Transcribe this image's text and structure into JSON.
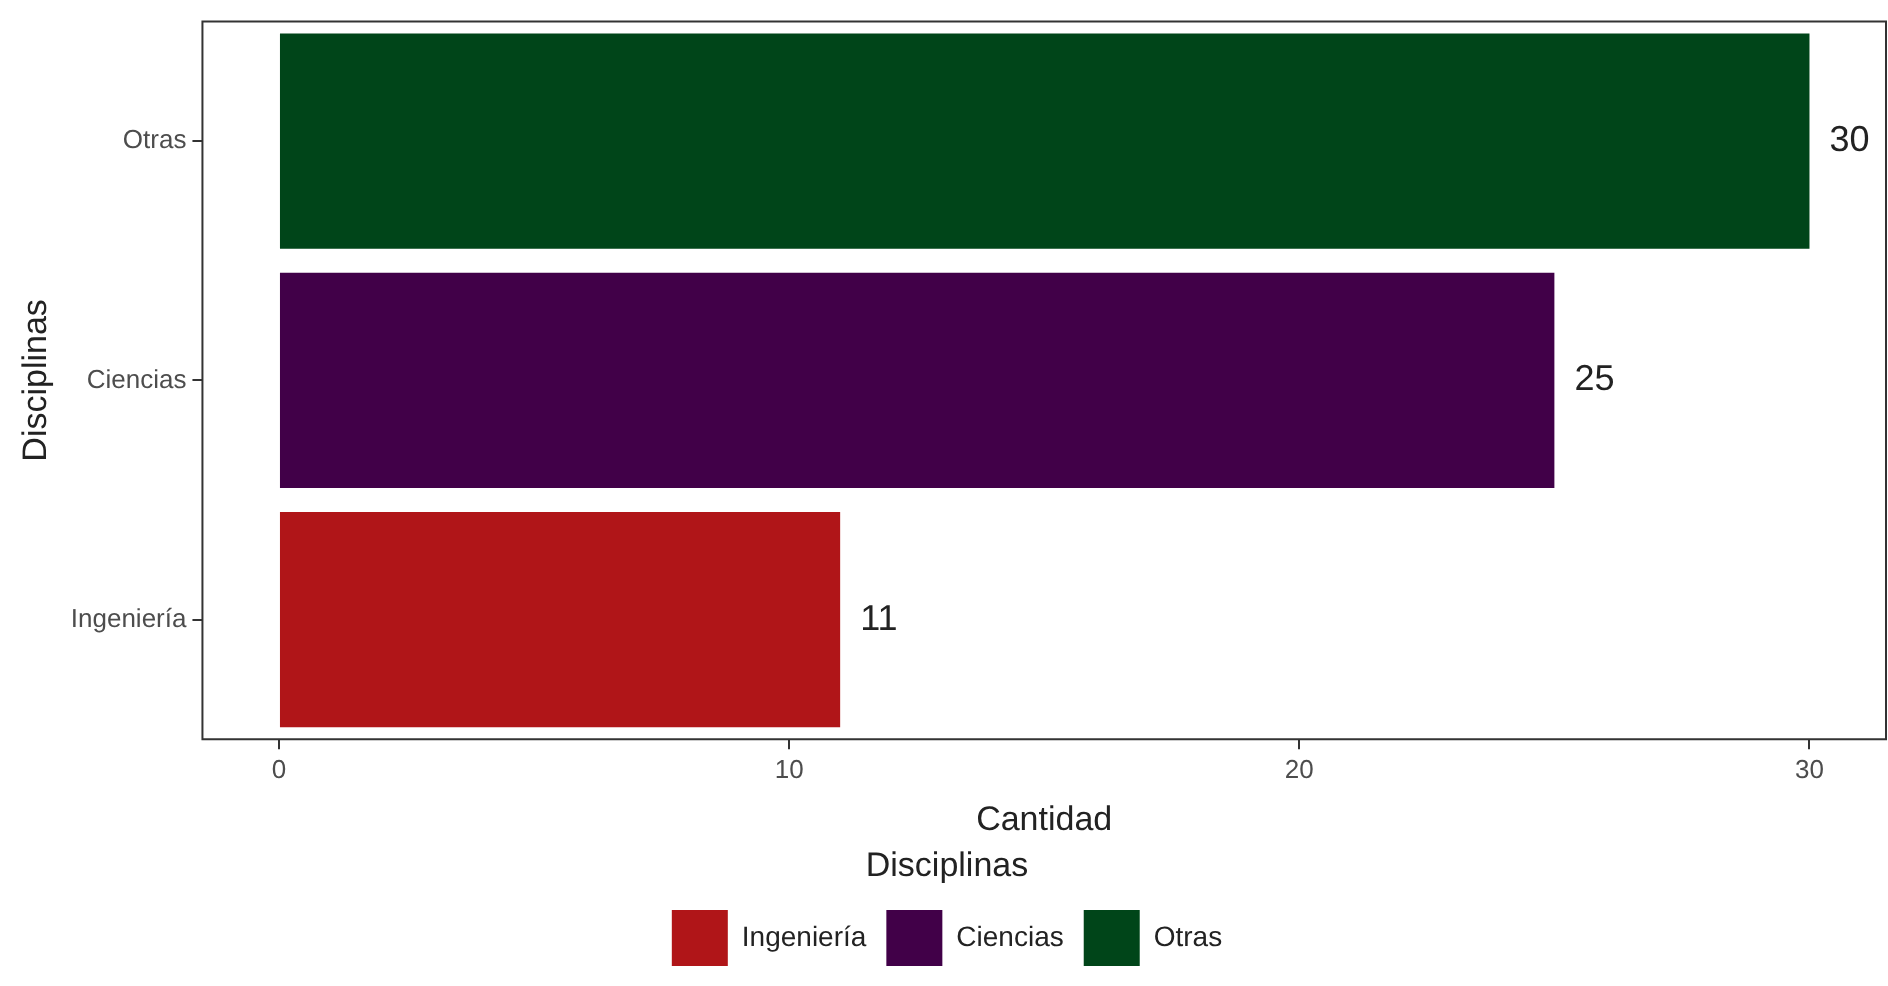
{
  "chart_data": {
    "type": "bar",
    "orientation": "horizontal",
    "categories": [
      "Otras",
      "Ciencias",
      "Ingeniería"
    ],
    "series": [
      {
        "name": "Ingeniería",
        "color": "#b01518",
        "values": [
          null,
          null,
          11
        ]
      },
      {
        "name": "Ciencias",
        "color": "#410048",
        "values": [
          null,
          25,
          null
        ]
      },
      {
        "name": "Otras",
        "color": "#004519",
        "values": [
          30,
          null,
          null
        ]
      }
    ],
    "xlabel": "Cantidad",
    "ylabel": "Disciplinas",
    "legend_title": "Disciplinas",
    "xlim": [
      -1.5,
      31.5
    ],
    "xticks": [
      0,
      10,
      20,
      30
    ],
    "grid": false,
    "legend": "bottom",
    "data_labels": true
  }
}
